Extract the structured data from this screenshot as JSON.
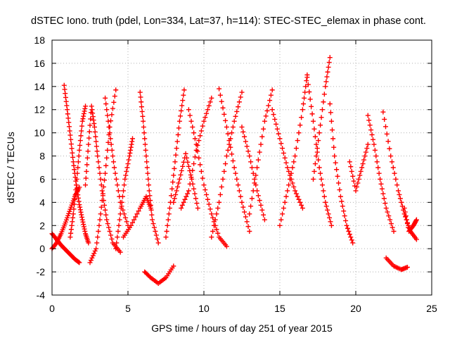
{
  "chart_data": {
    "type": "scatter",
    "title": "dSTEC Iono. truth (pdel, Lon=334, Lat=37, h=114): STEC-STEC_elemax in phase cont.",
    "xlabel": "GPS time / hours of day 251 of year 2015",
    "ylabel": "dSTEC  / TECUs",
    "xlim": [
      0,
      25
    ],
    "ylim": [
      -4,
      18
    ],
    "xticks": [
      0,
      5,
      10,
      15,
      20,
      25
    ],
    "yticks": [
      -4,
      -2,
      0,
      2,
      4,
      6,
      8,
      10,
      12,
      14,
      16,
      18
    ],
    "grid": true,
    "legend": "none",
    "marker": "+",
    "color": "#ff0000",
    "series": [
      {
        "x": [
          0.0,
          0.3,
          0.6,
          0.9,
          1.2,
          1.5,
          1.8
        ],
        "y": [
          1.3,
          0.8,
          0.3,
          -0.1,
          -0.5,
          -0.9,
          -1.2
        ]
      },
      {
        "x": [
          0.0,
          0.3,
          0.6,
          0.9,
          1.2,
          1.5,
          1.8
        ],
        "y": [
          0.0,
          0.5,
          1.3,
          2.3,
          3.4,
          4.5,
          5.3
        ]
      },
      {
        "x": [
          0.8,
          1.0,
          1.2,
          1.4,
          1.6,
          1.8,
          2.0,
          2.2,
          2.4
        ],
        "y": [
          14.1,
          12.0,
          9.8,
          7.5,
          5.5,
          3.8,
          2.5,
          1.3,
          0.5
        ]
      },
      {
        "x": [
          1.2,
          1.4,
          1.6,
          1.8,
          2.0,
          2.2
        ],
        "y": [
          1.0,
          3.0,
          5.5,
          8.5,
          11.0,
          12.3
        ]
      },
      {
        "x": [
          2.2,
          2.4,
          2.6,
          2.8,
          3.0,
          3.3,
          3.6,
          4.0,
          4.5
        ],
        "y": [
          5.5,
          9.0,
          12.3,
          10.5,
          8.0,
          5.0,
          2.5,
          0.5,
          -0.3
        ]
      },
      {
        "x": [
          2.5,
          2.9,
          3.2,
          3.5,
          3.8,
          4.2
        ],
        "y": [
          -1.2,
          0.0,
          3.0,
          6.5,
          10.5,
          13.7
        ]
      },
      {
        "x": [
          3.5,
          3.8,
          4.1,
          4.5,
          5.0
        ],
        "y": [
          13.0,
          10.0,
          7.0,
          4.0,
          2.0
        ]
      },
      {
        "x": [
          4.2,
          4.5,
          4.8,
          5.1,
          5.3
        ],
        "y": [
          0.0,
          3.0,
          6.0,
          8.0,
          9.5
        ]
      },
      {
        "x": [
          4.7,
          5.2,
          5.8,
          6.2,
          6.5
        ],
        "y": [
          1.0,
          2.0,
          3.5,
          4.5,
          3.5
        ]
      },
      {
        "x": [
          5.8,
          6.0,
          6.2,
          6.4,
          6.6,
          7.0
        ],
        "y": [
          13.5,
          11.0,
          8.0,
          5.0,
          2.5,
          0.5
        ]
      },
      {
        "x": [
          6.1,
          6.5,
          7.0,
          7.5,
          8.0
        ],
        "y": [
          -2.0,
          -2.5,
          -3.0,
          -2.5,
          -1.5
        ]
      },
      {
        "x": [
          7.5,
          7.8,
          8.1,
          8.4,
          8.7
        ],
        "y": [
          1.0,
          4.0,
          7.5,
          11.0,
          13.7
        ]
      },
      {
        "x": [
          8.0,
          8.4,
          8.8,
          9.2,
          9.6
        ],
        "y": [
          4.0,
          6.0,
          8.2,
          6.0,
          3.5
        ]
      },
      {
        "x": [
          8.5,
          9.0,
          9.5,
          10.0,
          10.5
        ],
        "y": [
          3.5,
          5.0,
          8.5,
          11.0,
          13.0
        ]
      },
      {
        "x": [
          9.0,
          9.5,
          10.0,
          10.5,
          11.0,
          11.5
        ],
        "y": [
          12.0,
          9.0,
          5.5,
          3.0,
          1.0,
          0.2
        ]
      },
      {
        "x": [
          10.5,
          11.0,
          11.5,
          12.0,
          12.5
        ],
        "y": [
          1.0,
          4.0,
          8.0,
          11.0,
          13.5
        ]
      },
      {
        "x": [
          11.0,
          11.5,
          12.0,
          12.5,
          13.0
        ],
        "y": [
          13.8,
          10.5,
          7.0,
          4.0,
          1.5
        ]
      },
      {
        "x": [
          12.5,
          13.0,
          13.5,
          14.0
        ],
        "y": [
          10.5,
          8.0,
          5.0,
          2.5
        ]
      },
      {
        "x": [
          13.0,
          13.5,
          14.0,
          14.5
        ],
        "y": [
          3.0,
          7.0,
          11.0,
          13.7
        ]
      },
      {
        "x": [
          14.5,
          15.0,
          15.5,
          16.0,
          16.5
        ],
        "y": [
          12.0,
          9.5,
          7.0,
          5.0,
          3.5
        ]
      },
      {
        "x": [
          15.0,
          15.5,
          16.0,
          16.5,
          16.8
        ],
        "y": [
          2.0,
          5.0,
          8.0,
          12.0,
          15.0
        ]
      },
      {
        "x": [
          16.8,
          17.2,
          17.6,
          18.0,
          18.4
        ],
        "y": [
          14.8,
          11.0,
          7.0,
          4.0,
          2.0
        ]
      },
      {
        "x": [
          17.2,
          17.6,
          18.0,
          18.3
        ],
        "y": [
          6.0,
          10.0,
          14.0,
          16.5
        ]
      },
      {
        "x": [
          18.3,
          18.6,
          19.0,
          19.4,
          19.8
        ],
        "y": [
          12.5,
          8.0,
          4.5,
          2.0,
          0.5
        ]
      },
      {
        "x": [
          19.6,
          20.0,
          20.4,
          20.8
        ],
        "y": [
          7.5,
          5.0,
          7.0,
          9.0
        ]
      },
      {
        "x": [
          20.8,
          21.2,
          21.6,
          22.0,
          22.5
        ],
        "y": [
          11.5,
          9.0,
          6.0,
          3.5,
          1.5
        ]
      },
      {
        "x": [
          21.8,
          22.3,
          22.8,
          23.2,
          23.6,
          24.0
        ],
        "y": [
          11.8,
          8.0,
          5.0,
          3.0,
          1.5,
          0.8
        ]
      },
      {
        "x": [
          22.0,
          22.5,
          23.0,
          23.4
        ],
        "y": [
          -0.8,
          -1.5,
          -1.8,
          -1.6
        ]
      },
      {
        "x": [
          23.2,
          23.5,
          23.8,
          24.0
        ],
        "y": [
          3.5,
          1.5,
          2.0,
          2.5
        ]
      }
    ]
  }
}
